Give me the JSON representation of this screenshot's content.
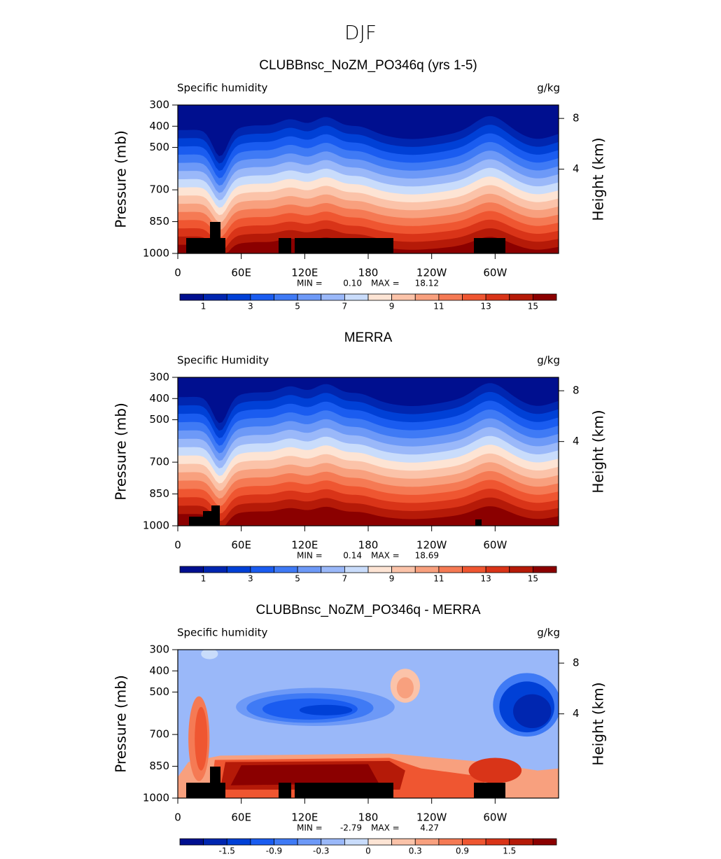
{
  "chart_data": {
    "title": "DJF",
    "panels": [
      {
        "type": "contour",
        "title": "CLUBBnsc_NoZM_PO346q (yrs 1-5)",
        "left_label": "Specific humidity",
        "right_label": "g/kg",
        "ylabel": "Pressure (mb)",
        "y2label": "Height (km)",
        "xlim": [
          0,
          360
        ],
        "xticks": [
          0,
          {
            "value": 60,
            "label": "60E"
          },
          {
            "value": 120,
            "label": "120E"
          },
          180,
          {
            "value": 240,
            "label": "120W"
          },
          {
            "value": 300,
            "label": "60W"
          }
        ],
        "ylim": [
          1000,
          300
        ],
        "yticks": [
          300,
          400,
          500,
          700,
          850,
          1000
        ],
        "y2ticks": [
          8,
          4
        ],
        "min_text": "MIN =",
        "min": {
          "value": 0.1,
          "label": "0.10"
        },
        "max_text": "MAX =",
        "max": {
          "value": 18.12,
          "label": "18.12"
        },
        "levels": [
          1,
          2,
          3,
          4,
          5,
          6,
          7,
          8,
          9,
          10,
          11,
          12,
          13,
          14,
          15
        ],
        "colorbar_ticks": [
          1,
          3,
          5,
          7,
          9,
          11,
          13,
          15
        ],
        "colors": [
          "#000f8f",
          "#0026b0",
          "#0040d6",
          "#1a5cf0",
          "#3f7af5",
          "#6d99f7",
          "#9ab8f9",
          "#c9dcfb",
          "#fde4d4",
          "#fbc3a9",
          "#f8a07e",
          "#f57a54",
          "#ef5631",
          "#d93418",
          "#b51a08",
          "#8b0000"
        ]
      },
      {
        "type": "contour",
        "title": "MERRA",
        "left_label": "Specific Humidity",
        "right_label": "g/kg",
        "ylabel": "Pressure (mb)",
        "y2label": "Height (km)",
        "xlim": [
          0,
          360
        ],
        "xticks": [
          0,
          {
            "value": 60,
            "label": "60E"
          },
          {
            "value": 120,
            "label": "120E"
          },
          180,
          {
            "value": 240,
            "label": "120W"
          },
          {
            "value": 300,
            "label": "60W"
          }
        ],
        "ylim": [
          1000,
          300
        ],
        "yticks": [
          300,
          400,
          500,
          700,
          850,
          1000
        ],
        "y2ticks": [
          8,
          4
        ],
        "min_text": "MIN =",
        "min": {
          "value": 0.14,
          "label": "0.14"
        },
        "max_text": "MAX =",
        "max": {
          "value": 18.69,
          "label": "18.69"
        },
        "levels": [
          1,
          2,
          3,
          4,
          5,
          6,
          7,
          8,
          9,
          10,
          11,
          12,
          13,
          14,
          15
        ],
        "colorbar_ticks": [
          1,
          3,
          5,
          7,
          9,
          11,
          13,
          15
        ],
        "colors": [
          "#000f8f",
          "#0026b0",
          "#0040d6",
          "#1a5cf0",
          "#3f7af5",
          "#6d99f7",
          "#9ab8f9",
          "#c9dcfb",
          "#fde4d4",
          "#fbc3a9",
          "#f8a07e",
          "#f57a54",
          "#ef5631",
          "#d93418",
          "#b51a08",
          "#8b0000"
        ]
      },
      {
        "type": "contour_diff",
        "title": "CLUBBnsc_NoZM_PO346q - MERRA",
        "left_label": "Specific humidity",
        "right_label": "g/kg",
        "ylabel": "Pressure (mb)",
        "y2label": "Height (km)",
        "xlim": [
          0,
          360
        ],
        "xticks": [
          0,
          {
            "value": 60,
            "label": "60E"
          },
          {
            "value": 120,
            "label": "120E"
          },
          180,
          {
            "value": 240,
            "label": "120W"
          },
          {
            "value": 300,
            "label": "60W"
          }
        ],
        "ylim": [
          1000,
          300
        ],
        "yticks": [
          300,
          400,
          500,
          700,
          850,
          1000
        ],
        "y2ticks": [
          8,
          4
        ],
        "min_text": "MIN =",
        "min": {
          "value": -2.79,
          "label": "-2.79"
        },
        "max_text": "MAX =",
        "max": {
          "value": 4.27,
          "label": "4.27"
        },
        "levels": [
          -1.8,
          -1.5,
          -1.2,
          -0.9,
          -0.6,
          -0.3,
          -0.1,
          0,
          0.1,
          0.3,
          0.6,
          0.9,
          1.2,
          1.5,
          1.8
        ],
        "colorbar_ticks": [
          -1.5,
          -0.9,
          -0.3,
          0,
          0.3,
          0.9,
          1.5
        ],
        "colors": [
          "#000f8f",
          "#0026b0",
          "#0040d6",
          "#1a5cf0",
          "#3f7af5",
          "#6d99f7",
          "#9ab8f9",
          "#c9dcfb",
          "#fde4d4",
          "#fbc3a9",
          "#f8a07e",
          "#f57a54",
          "#ef5631",
          "#d93418",
          "#b51a08",
          "#8b0000"
        ]
      }
    ]
  }
}
